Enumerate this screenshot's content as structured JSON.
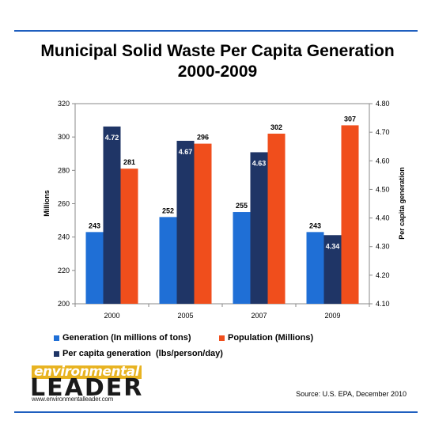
{
  "page": {
    "title_line1": "Municipal Solid Waste Per Capita Generation",
    "title_line2": "2000-2009",
    "source": "Source: U.S. EPA, December 2010",
    "logo": {
      "word_top": "environmental",
      "word_big": "LEADER",
      "url": "www.environmentalleader.com"
    }
  },
  "colors": {
    "generation": "#1f6fd6",
    "population": "#f04e1c",
    "per_capita": "#1f3566",
    "rule": "#1f5fbf"
  },
  "chart_data": {
    "type": "bar",
    "categories": [
      "2000",
      "2005",
      "2007",
      "2009"
    ],
    "ylabel": "Millions",
    "y2label": "Per capita generation",
    "ylim": [
      200,
      320
    ],
    "y2lim": [
      4.1,
      4.8
    ],
    "yticks": [
      "200",
      "220",
      "240",
      "260",
      "280",
      "300",
      "320"
    ],
    "y2ticks": [
      "4.10",
      "4.20",
      "4.30",
      "4.40",
      "4.50",
      "4.60",
      "4.70",
      "4.80"
    ],
    "legend_position": "bottom",
    "series": [
      {
        "name": "Generation (In millions of tons)",
        "axis": "left",
        "values": [
          243,
          252,
          255,
          243
        ],
        "labels": [
          "243",
          "252",
          "255",
          "243"
        ]
      },
      {
        "name": "Per capita generation  (lbs/person/day)",
        "axis": "right",
        "values": [
          4.72,
          4.67,
          4.63,
          4.34
        ],
        "labels": [
          "4.72",
          "4.67",
          "4.63",
          "4.34"
        ]
      },
      {
        "name": "Population (Millions)",
        "axis": "left",
        "values": [
          281,
          296,
          302,
          307
        ],
        "labels": [
          "281",
          "296",
          "302",
          "307"
        ]
      }
    ]
  }
}
